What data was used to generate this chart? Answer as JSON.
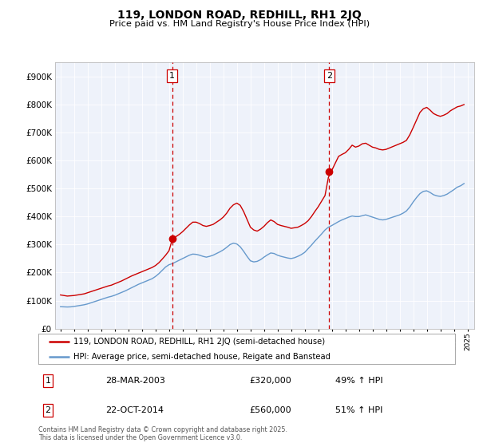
{
  "title": "119, LONDON ROAD, REDHILL, RH1 2JQ",
  "subtitle": "Price paid vs. HM Land Registry's House Price Index (HPI)",
  "red_label": "119, LONDON ROAD, REDHILL, RH1 2JQ (semi-detached house)",
  "blue_label": "HPI: Average price, semi-detached house, Reigate and Banstead",
  "marker1_date": "28-MAR-2003",
  "marker1_price": 320000,
  "marker1_hpi": "49% ↑ HPI",
  "marker2_date": "22-OCT-2014",
  "marker2_price": 560000,
  "marker2_hpi": "51% ↑ HPI",
  "vline1_year": 2003.23,
  "vline2_year": 2014.81,
  "red_color": "#cc0000",
  "blue_color": "#6699cc",
  "vline_color": "#cc0000",
  "background_color": "#eef2fa",
  "ylim_max": 950000,
  "footnote": "Contains HM Land Registry data © Crown copyright and database right 2025.\nThis data is licensed under the Open Government Licence v3.0.",
  "red_data": {
    "years": [
      1995.0,
      1995.25,
      1995.5,
      1995.75,
      1996.0,
      1996.25,
      1996.5,
      1996.75,
      1997.0,
      1997.25,
      1997.5,
      1997.75,
      1998.0,
      1998.25,
      1998.5,
      1998.75,
      1999.0,
      1999.25,
      1999.5,
      1999.75,
      2000.0,
      2000.25,
      2000.5,
      2000.75,
      2001.0,
      2001.25,
      2001.5,
      2001.75,
      2002.0,
      2002.25,
      2002.5,
      2002.75,
      2003.0,
      2003.25,
      2003.5,
      2003.75,
      2004.0,
      2004.25,
      2004.5,
      2004.75,
      2005.0,
      2005.25,
      2005.5,
      2005.75,
      2006.0,
      2006.25,
      2006.5,
      2006.75,
      2007.0,
      2007.25,
      2007.5,
      2007.75,
      2008.0,
      2008.25,
      2008.5,
      2008.75,
      2009.0,
      2009.25,
      2009.5,
      2009.75,
      2010.0,
      2010.25,
      2010.5,
      2010.75,
      2011.0,
      2011.25,
      2011.5,
      2011.75,
      2012.0,
      2012.25,
      2012.5,
      2012.75,
      2013.0,
      2013.25,
      2013.5,
      2013.75,
      2014.0,
      2014.25,
      2014.5,
      2014.75,
      2015.0,
      2015.25,
      2015.5,
      2015.75,
      2016.0,
      2016.25,
      2016.5,
      2016.75,
      2017.0,
      2017.25,
      2017.5,
      2017.75,
      2018.0,
      2018.25,
      2018.5,
      2018.75,
      2019.0,
      2019.25,
      2019.5,
      2019.75,
      2020.0,
      2020.25,
      2020.5,
      2020.75,
      2021.0,
      2021.25,
      2021.5,
      2021.75,
      2022.0,
      2022.25,
      2022.5,
      2022.75,
      2023.0,
      2023.25,
      2023.5,
      2023.75,
      2024.0,
      2024.25,
      2024.5,
      2024.75
    ],
    "values": [
      120000,
      118000,
      116000,
      117000,
      118000,
      120000,
      122000,
      124000,
      128000,
      132000,
      136000,
      140000,
      144000,
      148000,
      152000,
      155000,
      160000,
      165000,
      170000,
      176000,
      182000,
      188000,
      193000,
      198000,
      203000,
      208000,
      213000,
      218000,
      225000,
      235000,
      248000,
      262000,
      278000,
      320000,
      328000,
      336000,
      346000,
      358000,
      370000,
      380000,
      380000,
      375000,
      368000,
      365000,
      368000,
      372000,
      380000,
      388000,
      398000,
      412000,
      430000,
      442000,
      448000,
      440000,
      418000,
      390000,
      362000,
      352000,
      348000,
      355000,
      365000,
      378000,
      388000,
      382000,
      372000,
      368000,
      365000,
      362000,
      358000,
      360000,
      362000,
      368000,
      375000,
      385000,
      400000,
      418000,
      435000,
      455000,
      475000,
      540000,
      565000,
      590000,
      615000,
      622000,
      628000,
      640000,
      655000,
      648000,
      652000,
      660000,
      662000,
      655000,
      648000,
      645000,
      640000,
      638000,
      640000,
      645000,
      650000,
      655000,
      660000,
      665000,
      672000,
      692000,
      718000,
      745000,
      772000,
      785000,
      790000,
      780000,
      768000,
      762000,
      758000,
      762000,
      768000,
      778000,
      785000,
      792000,
      795000,
      800000
    ]
  },
  "blue_data": {
    "years": [
      1995.0,
      1995.25,
      1995.5,
      1995.75,
      1996.0,
      1996.25,
      1996.5,
      1996.75,
      1997.0,
      1997.25,
      1997.5,
      1997.75,
      1998.0,
      1998.25,
      1998.5,
      1998.75,
      1999.0,
      1999.25,
      1999.5,
      1999.75,
      2000.0,
      2000.25,
      2000.5,
      2000.75,
      2001.0,
      2001.25,
      2001.5,
      2001.75,
      2002.0,
      2002.25,
      2002.5,
      2002.75,
      2003.0,
      2003.25,
      2003.5,
      2003.75,
      2004.0,
      2004.25,
      2004.5,
      2004.75,
      2005.0,
      2005.25,
      2005.5,
      2005.75,
      2006.0,
      2006.25,
      2006.5,
      2006.75,
      2007.0,
      2007.25,
      2007.5,
      2007.75,
      2008.0,
      2008.25,
      2008.5,
      2008.75,
      2009.0,
      2009.25,
      2009.5,
      2009.75,
      2010.0,
      2010.25,
      2010.5,
      2010.75,
      2011.0,
      2011.25,
      2011.5,
      2011.75,
      2012.0,
      2012.25,
      2012.5,
      2012.75,
      2013.0,
      2013.25,
      2013.5,
      2013.75,
      2014.0,
      2014.25,
      2014.5,
      2014.75,
      2015.0,
      2015.25,
      2015.5,
      2015.75,
      2016.0,
      2016.25,
      2016.5,
      2016.75,
      2017.0,
      2017.25,
      2017.5,
      2017.75,
      2018.0,
      2018.25,
      2018.5,
      2018.75,
      2019.0,
      2019.25,
      2019.5,
      2019.75,
      2020.0,
      2020.25,
      2020.5,
      2020.75,
      2021.0,
      2021.25,
      2021.5,
      2021.75,
      2022.0,
      2022.25,
      2022.5,
      2022.75,
      2023.0,
      2023.25,
      2023.5,
      2023.75,
      2024.0,
      2024.25,
      2024.5,
      2024.75
    ],
    "values": [
      78000,
      77500,
      77000,
      77500,
      79000,
      81000,
      83000,
      85000,
      88000,
      92000,
      96000,
      100000,
      104000,
      108000,
      112000,
      115000,
      119000,
      124000,
      129000,
      134000,
      140000,
      146000,
      152000,
      158000,
      163000,
      168000,
      173000,
      178000,
      186000,
      196000,
      208000,
      220000,
      228000,
      232000,
      238000,
      244000,
      250000,
      256000,
      262000,
      266000,
      265000,
      262000,
      258000,
      255000,
      258000,
      262000,
      268000,
      274000,
      281000,
      290000,
      300000,
      305000,
      302000,
      292000,
      276000,
      258000,
      242000,
      238000,
      240000,
      246000,
      255000,
      263000,
      270000,
      268000,
      262000,
      258000,
      255000,
      252000,
      250000,
      253000,
      258000,
      264000,
      272000,
      285000,
      298000,
      312000,
      325000,
      338000,
      352000,
      362000,
      368000,
      375000,
      382000,
      388000,
      393000,
      398000,
      402000,
      400000,
      400000,
      403000,
      406000,
      402000,
      398000,
      394000,
      390000,
      388000,
      390000,
      394000,
      398000,
      402000,
      406000,
      412000,
      420000,
      434000,
      452000,
      468000,
      482000,
      490000,
      492000,
      486000,
      478000,
      474000,
      472000,
      475000,
      480000,
      488000,
      496000,
      505000,
      510000,
      518000
    ]
  }
}
